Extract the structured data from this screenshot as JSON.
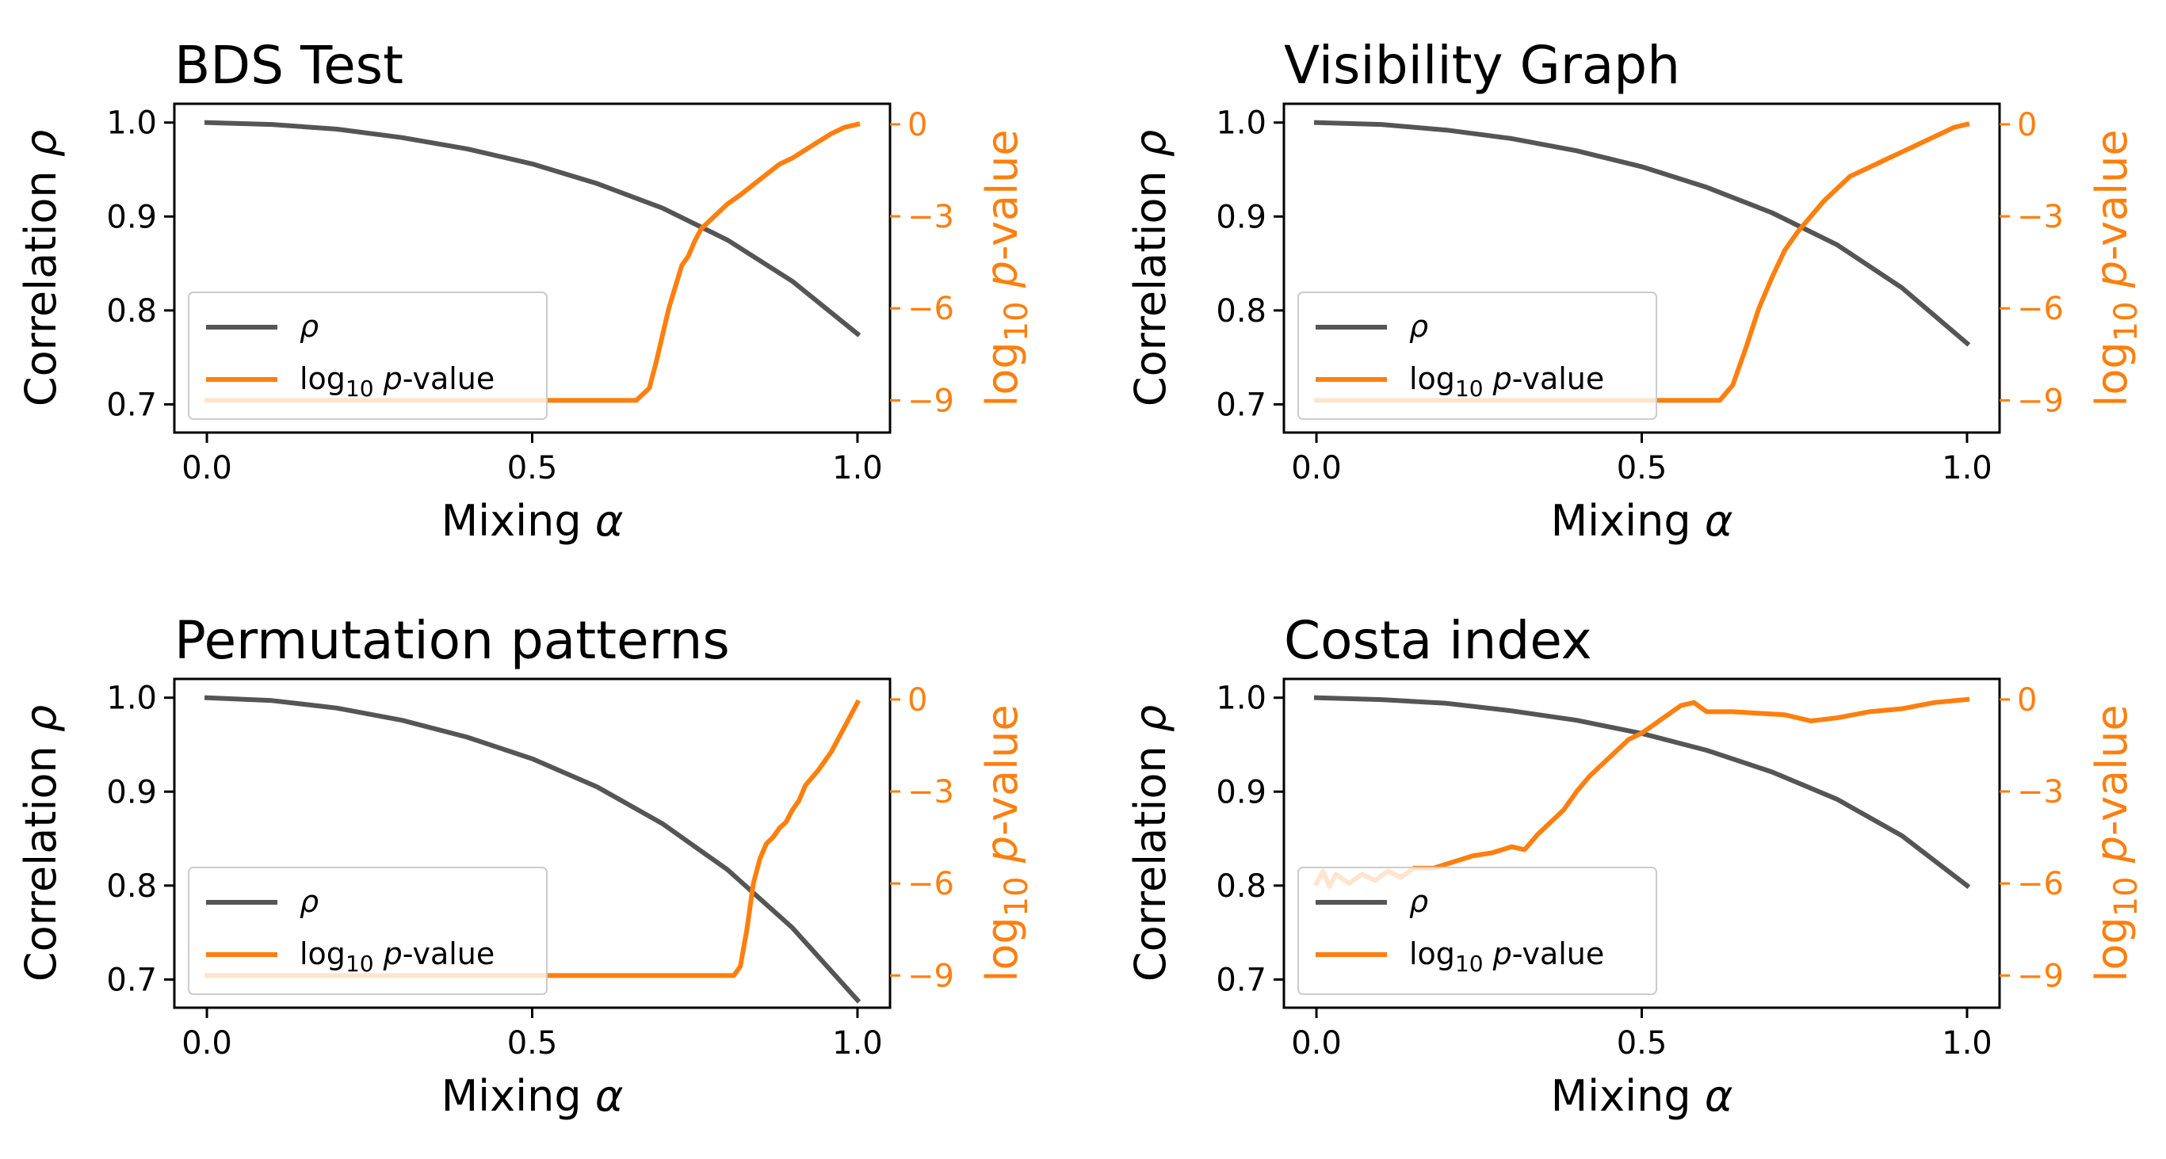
{
  "chart_data": [
    {
      "type": "line",
      "title": "BDS Test",
      "xlabel": "Mixing α",
      "ylabel_left": "Correlation ρ",
      "ylabel_right": "log10 p-value",
      "xlim": [
        -0.05,
        1.05
      ],
      "ylim_left": [
        0.67,
        1.02
      ],
      "ylim_right": [
        -10.05,
        0.67
      ],
      "xticks": [
        "0.0",
        "0.5",
        "1.0"
      ],
      "yticks_left": [
        "0.7",
        "0.8",
        "0.9",
        "1.0"
      ],
      "yticks_right": [
        "−9",
        "−6",
        "−3",
        "0"
      ],
      "legend": [
        "ρ",
        "log10 p-value"
      ],
      "legend_position": "lower-left",
      "grid": false,
      "series": [
        {
          "name": "ρ",
          "axis": "left",
          "x": [
            0,
            0.1,
            0.2,
            0.3,
            0.4,
            0.5,
            0.6,
            0.7,
            0.8,
            0.9,
            1.0
          ],
          "values": [
            1.0,
            0.998,
            0.993,
            0.984,
            0.972,
            0.956,
            0.935,
            0.909,
            0.875,
            0.831,
            0.775
          ]
        },
        {
          "name": "log10 p-value",
          "axis": "right",
          "x": [
            0,
            0.66,
            0.68,
            0.69,
            0.7,
            0.71,
            0.72,
            0.73,
            0.74,
            0.75,
            0.76,
            0.78,
            0.8,
            0.82,
            0.85,
            0.88,
            0.9,
            0.93,
            0.96,
            0.98,
            1.0
          ],
          "values": [
            -9.0,
            -9.0,
            -8.6,
            -7.8,
            -6.9,
            -6.0,
            -5.3,
            -4.6,
            -4.3,
            -3.8,
            -3.4,
            -3.0,
            -2.6,
            -2.3,
            -1.8,
            -1.3,
            -1.1,
            -0.7,
            -0.3,
            -0.1,
            0.0
          ]
        }
      ]
    },
    {
      "type": "line",
      "title": "Visibility Graph",
      "xlabel": "Mixing α",
      "ylabel_left": "Correlation ρ",
      "ylabel_right": "log10 p-value",
      "xlim": [
        -0.05,
        1.05
      ],
      "ylim_left": [
        0.67,
        1.02
      ],
      "ylim_right": [
        -10.05,
        0.67
      ],
      "xticks": [
        "0.0",
        "0.5",
        "1.0"
      ],
      "yticks_left": [
        "0.7",
        "0.8",
        "0.9",
        "1.0"
      ],
      "yticks_right": [
        "−9",
        "−6",
        "−3",
        "0"
      ],
      "legend": [
        "ρ",
        "log10 p-value"
      ],
      "legend_position": "lower-left",
      "grid": false,
      "series": [
        {
          "name": "ρ",
          "axis": "left",
          "x": [
            0,
            0.1,
            0.2,
            0.3,
            0.4,
            0.5,
            0.6,
            0.7,
            0.8,
            0.9,
            1.0
          ],
          "values": [
            1.0,
            0.998,
            0.992,
            0.983,
            0.97,
            0.953,
            0.931,
            0.904,
            0.87,
            0.824,
            0.765
          ]
        },
        {
          "name": "log10 p-value",
          "axis": "right",
          "x": [
            0,
            0.62,
            0.64,
            0.66,
            0.68,
            0.7,
            0.72,
            0.74,
            0.76,
            0.78,
            0.8,
            0.82,
            0.85,
            0.88,
            0.9,
            0.93,
            0.96,
            0.98,
            1.0
          ],
          "values": [
            -9.0,
            -9.0,
            -8.5,
            -7.3,
            -6.0,
            -5.0,
            -4.1,
            -3.5,
            -3.0,
            -2.5,
            -2.1,
            -1.7,
            -1.4,
            -1.1,
            -0.9,
            -0.6,
            -0.3,
            -0.1,
            0.0
          ]
        }
      ]
    },
    {
      "type": "line",
      "title": "Permutation patterns",
      "xlabel": "Mixing α",
      "ylabel_left": "Correlation ρ",
      "ylabel_right": "log10 p-value",
      "xlim": [
        -0.05,
        1.05
      ],
      "ylim_left": [
        0.67,
        1.02
      ],
      "ylim_right": [
        -10.05,
        0.67
      ],
      "xticks": [
        "0.0",
        "0.5",
        "1.0"
      ],
      "yticks_left": [
        "0.7",
        "0.8",
        "0.9",
        "1.0"
      ],
      "yticks_right": [
        "−9",
        "−6",
        "−3",
        "0"
      ],
      "legend": [
        "ρ",
        "log10 p-value"
      ],
      "legend_position": "lower-left",
      "grid": false,
      "series": [
        {
          "name": "ρ",
          "axis": "left",
          "x": [
            0,
            0.1,
            0.2,
            0.3,
            0.4,
            0.5,
            0.6,
            0.7,
            0.8,
            0.9,
            1.0
          ],
          "values": [
            1.0,
            0.997,
            0.989,
            0.976,
            0.958,
            0.935,
            0.905,
            0.866,
            0.817,
            0.755,
            0.678
          ]
        },
        {
          "name": "log10 p-value",
          "axis": "right",
          "x": [
            0,
            0.81,
            0.82,
            0.83,
            0.84,
            0.85,
            0.86,
            0.87,
            0.88,
            0.89,
            0.9,
            0.91,
            0.92,
            0.94,
            0.96,
            0.98,
            1.0
          ],
          "values": [
            -9.0,
            -9.0,
            -8.7,
            -7.5,
            -6.0,
            -5.2,
            -4.7,
            -4.5,
            -4.2,
            -4.0,
            -3.6,
            -3.3,
            -2.8,
            -2.3,
            -1.7,
            -0.9,
            -0.1
          ]
        }
      ]
    },
    {
      "type": "line",
      "title": "Costa index",
      "xlabel": "Mixing α",
      "ylabel_left": "Correlation ρ",
      "ylabel_right": "log10 p-value",
      "xlim": [
        -0.05,
        1.05
      ],
      "ylim_left": [
        0.67,
        1.02
      ],
      "ylim_right": [
        -10.05,
        0.67
      ],
      "xticks": [
        "0.0",
        "0.5",
        "1.0"
      ],
      "yticks_left": [
        "0.7",
        "0.8",
        "0.9",
        "1.0"
      ],
      "yticks_right": [
        "−9",
        "−6",
        "−3",
        "0"
      ],
      "legend": [
        "ρ",
        "log10 p-value"
      ],
      "legend_position": "lower-left",
      "grid": false,
      "series": [
        {
          "name": "ρ",
          "axis": "left",
          "x": [
            0,
            0.1,
            0.2,
            0.3,
            0.4,
            0.5,
            0.6,
            0.7,
            0.8,
            0.9,
            1.0
          ],
          "values": [
            1.0,
            0.998,
            0.994,
            0.986,
            0.976,
            0.962,
            0.944,
            0.921,
            0.892,
            0.853,
            0.8
          ]
        },
        {
          "name": "log10 p-value",
          "axis": "right",
          "x": [
            0,
            0.01,
            0.02,
            0.03,
            0.05,
            0.07,
            0.09,
            0.11,
            0.13,
            0.15,
            0.18,
            0.21,
            0.24,
            0.27,
            0.3,
            0.32,
            0.34,
            0.36,
            0.38,
            0.4,
            0.42,
            0.44,
            0.46,
            0.48,
            0.5,
            0.52,
            0.54,
            0.56,
            0.58,
            0.6,
            0.64,
            0.68,
            0.72,
            0.76,
            0.8,
            0.85,
            0.9,
            0.95,
            1.0
          ],
          "values": [
            -6.0,
            -5.6,
            -6.1,
            -5.7,
            -6.0,
            -5.7,
            -5.9,
            -5.6,
            -5.8,
            -5.5,
            -5.5,
            -5.3,
            -5.1,
            -5.0,
            -4.8,
            -4.9,
            -4.4,
            -4.0,
            -3.6,
            -3.0,
            -2.5,
            -2.1,
            -1.7,
            -1.3,
            -1.1,
            -0.8,
            -0.5,
            -0.2,
            -0.1,
            -0.4,
            -0.4,
            -0.45,
            -0.5,
            -0.7,
            -0.6,
            -0.4,
            -0.3,
            -0.1,
            0.0
          ]
        }
      ]
    }
  ],
  "colors": {
    "rho": "#555555",
    "pvalue": "#ff7f0e",
    "axis": "#000000",
    "legend_border": "#cccccc"
  }
}
